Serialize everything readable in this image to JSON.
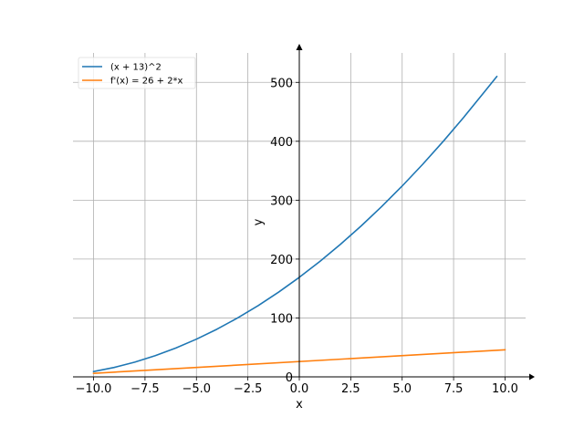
{
  "chart_data": {
    "type": "line",
    "title": "",
    "xlabel": "x",
    "ylabel": "y",
    "xlim": [
      -11.0,
      11.0
    ],
    "ylim": [
      0,
      550
    ],
    "x_ticks": [
      -10.0,
      -7.5,
      -5.0,
      -2.5,
      0.0,
      2.5,
      5.0,
      7.5,
      10.0
    ],
    "x_tick_labels": [
      "−10.0",
      "−7.5",
      "−5.0",
      "−2.5",
      "0.0",
      "2.5",
      "5.0",
      "7.5",
      "10.0"
    ],
    "y_ticks": [
      0,
      100,
      200,
      300,
      400,
      500
    ],
    "y_tick_labels": [
      "0",
      "100",
      "200",
      "300",
      "400",
      "500"
    ],
    "grid": true,
    "legend_position": "top-left",
    "series": [
      {
        "name": "(x + 13)^2",
        "color": "#1f77b4",
        "x": [
          -10,
          -9,
          -8,
          -7,
          -6,
          -5,
          -4,
          -3,
          -2,
          -1,
          0,
          1,
          2,
          3,
          4,
          5,
          6,
          7,
          8,
          9,
          9.6
        ],
        "y": [
          9,
          16,
          25,
          36,
          49,
          64,
          81,
          100,
          121,
          144,
          169,
          196,
          225,
          256,
          289,
          324,
          361,
          400,
          441,
          484,
          510
        ]
      },
      {
        "name": "f'(x) = 26 + 2*x",
        "color": "#ff7f0e",
        "x": [
          -10,
          10
        ],
        "y": [
          6,
          46
        ]
      }
    ]
  }
}
